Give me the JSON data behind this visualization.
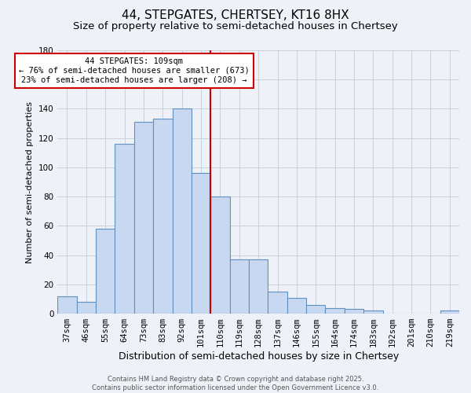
{
  "title": "44, STEPGATES, CHERTSEY, KT16 8HX",
  "subtitle": "Size of property relative to semi-detached houses in Chertsey",
  "xlabel": "Distribution of semi-detached houses by size in Chertsey",
  "ylabel": "Number of semi-detached properties",
  "categories": [
    "37sqm",
    "46sqm",
    "55sqm",
    "64sqm",
    "73sqm",
    "83sqm",
    "92sqm",
    "101sqm",
    "110sqm",
    "119sqm",
    "128sqm",
    "137sqm",
    "146sqm",
    "155sqm",
    "164sqm",
    "174sqm",
    "183sqm",
    "192sqm",
    "201sqm",
    "210sqm",
    "219sqm"
  ],
  "values": [
    12,
    8,
    58,
    116,
    131,
    133,
    140,
    96,
    80,
    37,
    37,
    15,
    11,
    6,
    4,
    3,
    2,
    0,
    0,
    0,
    2
  ],
  "bar_color": "#c8d8f0",
  "bar_edge_color": "#6090c0",
  "bar_edge_width": 0.8,
  "vline_x_index": 8,
  "vline_color": "#cc0000",
  "ylim": [
    0,
    180
  ],
  "yticks": [
    0,
    20,
    40,
    60,
    80,
    100,
    120,
    140,
    160,
    180
  ],
  "annotation_title": "44 STEPGATES: 109sqm",
  "annotation_line1": "← 76% of semi-detached houses are smaller (673)",
  "annotation_line2": "23% of semi-detached houses are larger (208) →",
  "annotation_box_color": "#ffffff",
  "annotation_box_edge": "#cc0000",
  "grid_color": "#c8d0dc",
  "background_color": "#eef2f8",
  "footer_line1": "Contains HM Land Registry data © Crown copyright and database right 2025.",
  "footer_line2": "Contains public sector information licensed under the Open Government Licence v3.0.",
  "title_fontsize": 11,
  "subtitle_fontsize": 9.5,
  "xlabel_fontsize": 9,
  "ylabel_fontsize": 8,
  "tick_fontsize": 7.5,
  "annotation_fontsize": 7.5,
  "footer_fontsize": 6
}
